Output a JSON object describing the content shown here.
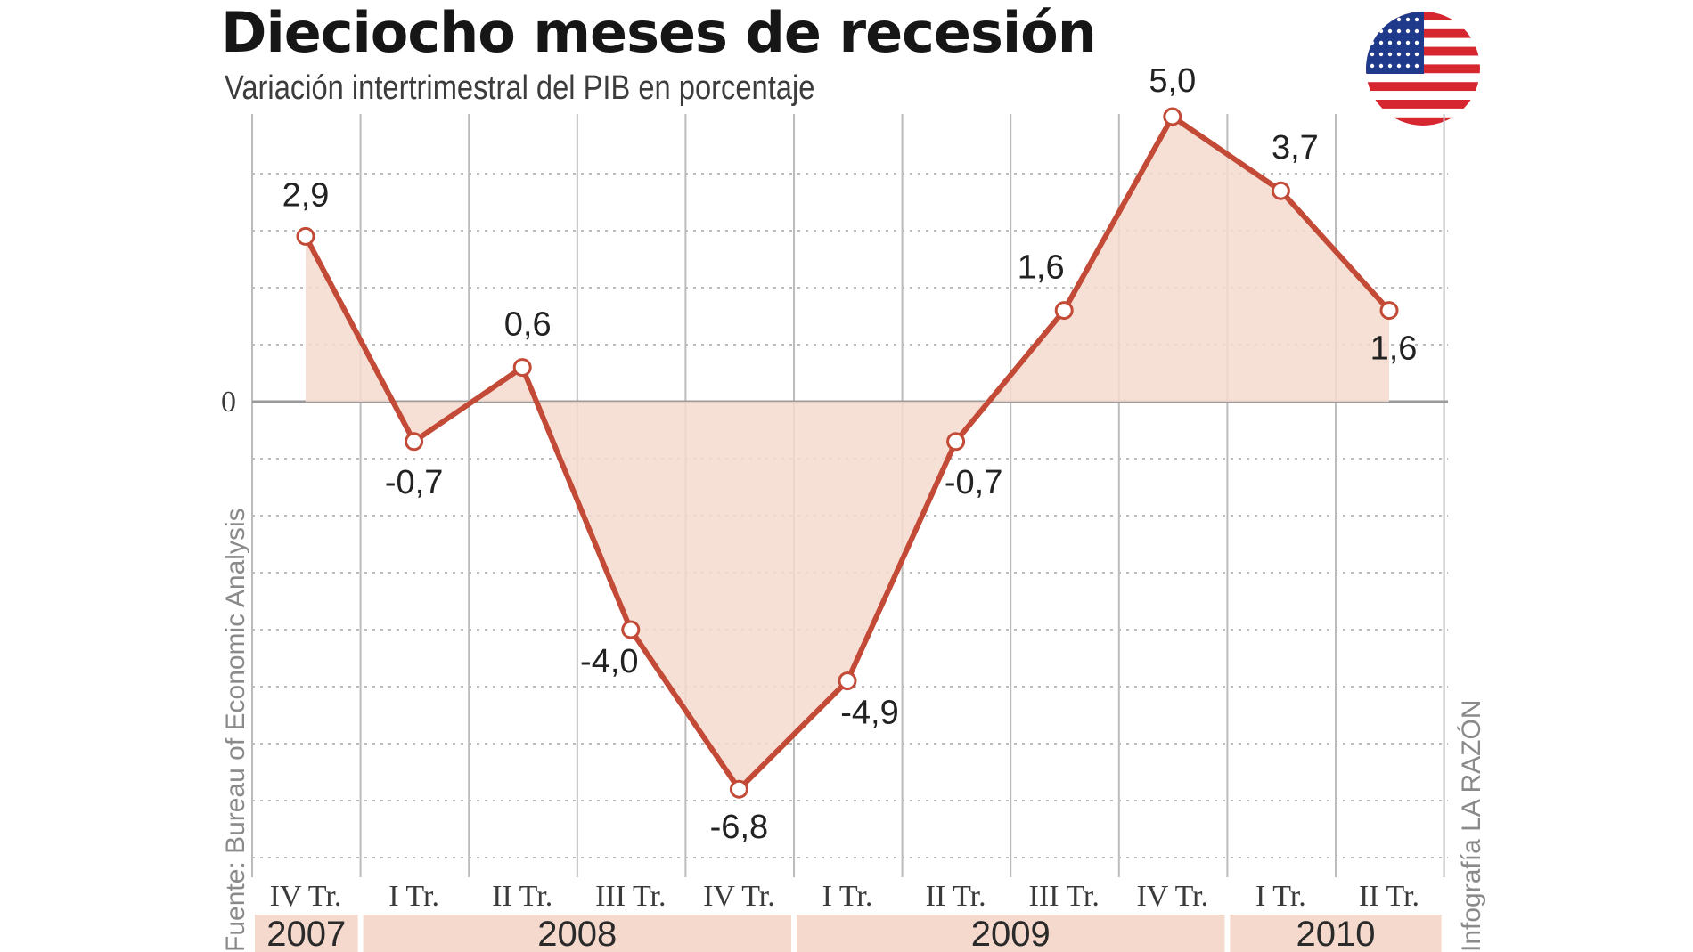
{
  "title": "Dieciocho meses de recesión",
  "subtitle": "Variación intertrimestral del PIB en porcentaje",
  "source": "Fuente: Bureau of Economic Analysis",
  "credit": "Infografía LA RAZÓN",
  "flag_icon": "usa-flag-icon",
  "colors": {
    "line": "#c24a36",
    "fill": "#f4d9cc",
    "year_band": "#f4d9cc",
    "grid": "#bcbcbc",
    "zero_line": "#9a9a9a"
  },
  "chart_data": {
    "type": "area",
    "title": "Dieciocho meses de recesión",
    "subtitle": "Variación intertrimestral del PIB en porcentaje",
    "categories": [
      "IV Tr.",
      "I Tr.",
      "II Tr.",
      "III Tr.",
      "IV Tr.",
      "I Tr.",
      "II Tr.",
      "III Tr.",
      "IV Tr.",
      "I Tr.",
      "II Tr."
    ],
    "years": [
      {
        "label": "2007",
        "span": 1
      },
      {
        "label": "2008",
        "span": 4
      },
      {
        "label": "2009",
        "span": 4
      },
      {
        "label": "2010",
        "span": 2
      }
    ],
    "series": [
      {
        "values": [
          2.9,
          -0.7,
          0.6,
          -4.0,
          -6.8,
          -4.9,
          -0.7,
          1.6,
          5.0,
          3.7,
          1.6
        ],
        "labels": [
          "2,9",
          "-0,7",
          "0,6",
          "-4,0",
          "-6,8",
          "-4,9",
          "-0,7",
          "1,6",
          "5,0",
          "3,7",
          "1,6"
        ]
      }
    ],
    "y_tick_labels": [
      "0"
    ],
    "ylim": [
      -8,
      5
    ],
    "grid": true
  }
}
